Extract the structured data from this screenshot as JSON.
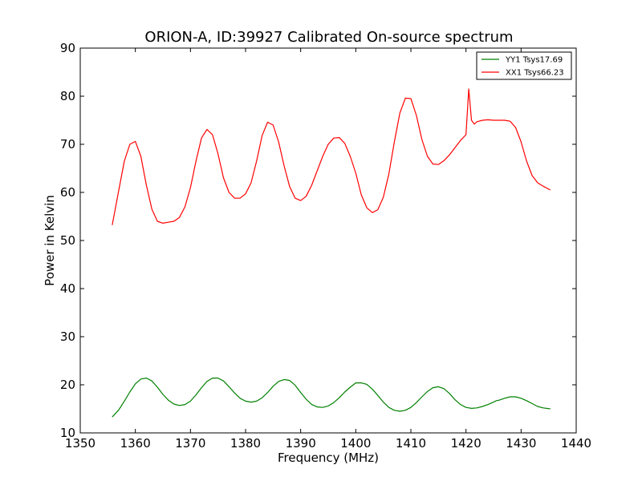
{
  "chart_data": {
    "type": "line",
    "title": "ORION-A, ID:39927 Calibrated On-source spectrum",
    "xlabel": "Frequency (MHz)",
    "ylabel": "Power in Kelvin",
    "xlim": [
      1350,
      1440
    ],
    "ylim": [
      10,
      90
    ],
    "xticks": [
      "1350",
      "1360",
      "1370",
      "1380",
      "1390",
      "1400",
      "1410",
      "1420",
      "1430",
      "1440"
    ],
    "yticks": [
      "10",
      "20",
      "30",
      "40",
      "50",
      "60",
      "70",
      "80",
      "90"
    ],
    "grid": false,
    "legend_position": "top-right",
    "series": [
      {
        "name": "YY1 Tsys17.69",
        "color": "#008000",
        "x": [
          1355.8,
          1357,
          1358,
          1359,
          1360,
          1361,
          1362,
          1363,
          1364,
          1365,
          1366,
          1367,
          1368,
          1369,
          1370,
          1371,
          1372,
          1373,
          1374,
          1375,
          1376,
          1377,
          1378,
          1379,
          1380,
          1381,
          1382,
          1383,
          1384,
          1385,
          1386,
          1387,
          1388,
          1389,
          1390,
          1391,
          1392,
          1393,
          1394,
          1395,
          1396,
          1397,
          1398,
          1399,
          1400,
          1400.5,
          1401,
          1402,
          1403,
          1404,
          1405,
          1406,
          1407,
          1408,
          1409,
          1410,
          1411,
          1412,
          1413,
          1414,
          1415,
          1416,
          1417,
          1418,
          1419,
          1420,
          1421,
          1422,
          1423,
          1424,
          1425,
          1425.5,
          1426,
          1427,
          1428,
          1429,
          1430,
          1431,
          1432,
          1433,
          1434,
          1435.3
        ],
        "values": [
          13.3,
          14.8,
          16.6,
          18.5,
          20.2,
          21.2,
          21.4,
          20.8,
          19.5,
          18.0,
          16.8,
          16.0,
          15.7,
          15.9,
          16.6,
          17.9,
          19.4,
          20.7,
          21.4,
          21.4,
          20.8,
          19.6,
          18.3,
          17.2,
          16.6,
          16.4,
          16.6,
          17.3,
          18.4,
          19.7,
          20.7,
          21.1,
          20.9,
          19.9,
          18.4,
          17.0,
          15.9,
          15.4,
          15.3,
          15.6,
          16.3,
          17.3,
          18.5,
          19.5,
          20.4,
          20.4,
          20.4,
          20.1,
          19.1,
          17.8,
          16.4,
          15.3,
          14.7,
          14.5,
          14.7,
          15.3,
          16.3,
          17.5,
          18.6,
          19.4,
          19.6,
          19.2,
          18.2,
          16.9,
          15.9,
          15.3,
          15.1,
          15.2,
          15.5,
          15.9,
          16.4,
          16.7,
          16.8,
          17.2,
          17.5,
          17.5,
          17.2,
          16.7,
          16.1,
          15.5,
          15.2,
          15.0
        ]
      },
      {
        "name": "XX1 Tsys66.23",
        "color": "#ff0000",
        "x": [
          1355.8,
          1357,
          1358,
          1359,
          1360,
          1361,
          1362,
          1363,
          1364,
          1365,
          1366,
          1367,
          1368,
          1369,
          1370,
          1371,
          1372,
          1373,
          1374,
          1375,
          1376,
          1377,
          1378,
          1379,
          1380,
          1381,
          1382,
          1383,
          1384,
          1385,
          1386,
          1387,
          1388,
          1389,
          1390,
          1391,
          1392,
          1393,
          1394,
          1395,
          1396,
          1397,
          1398,
          1399,
          1400,
          1401,
          1402,
          1403,
          1404,
          1405,
          1406,
          1407,
          1408,
          1409,
          1410,
          1411,
          1412,
          1413,
          1414,
          1415,
          1416,
          1417,
          1418,
          1419,
          1420,
          1420.5,
          1421,
          1421.5,
          1422,
          1423,
          1424,
          1425,
          1426,
          1427,
          1428,
          1429,
          1430,
          1431,
          1432,
          1433,
          1434,
          1435.3
        ],
        "values": [
          53.2,
          60.5,
          66.5,
          70.0,
          70.6,
          67.5,
          61.5,
          56.5,
          54.0,
          53.6,
          53.8,
          54.0,
          54.8,
          57.0,
          61.0,
          66.5,
          71.3,
          73.1,
          72.0,
          68.0,
          63.0,
          60.0,
          58.8,
          58.8,
          59.7,
          62.0,
          66.5,
          71.8,
          74.6,
          74.0,
          70.5,
          65.5,
          61.2,
          58.8,
          58.3,
          59.2,
          61.5,
          64.5,
          67.5,
          70.0,
          71.3,
          71.4,
          70.2,
          67.5,
          64.0,
          59.5,
          56.8,
          55.8,
          56.4,
          59.0,
          63.8,
          70.5,
          76.5,
          79.6,
          79.5,
          76.0,
          71.0,
          67.5,
          65.9,
          65.8,
          66.6,
          67.8,
          69.3,
          70.8,
          72.0,
          81.5,
          75.0,
          74.2,
          74.7,
          75.0,
          75.1,
          75.0,
          75.0,
          75.0,
          74.8,
          73.5,
          70.5,
          66.5,
          63.5,
          62.0,
          61.3,
          60.5
        ]
      }
    ]
  }
}
